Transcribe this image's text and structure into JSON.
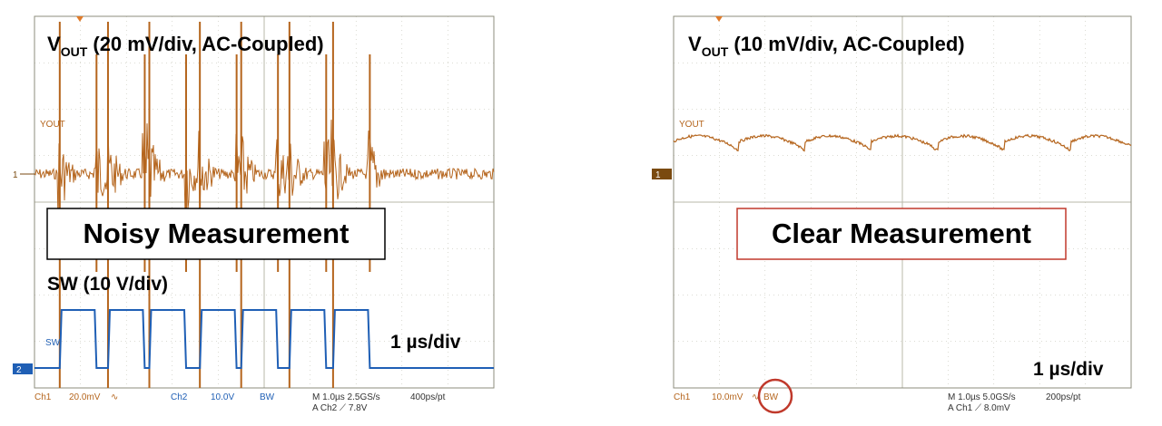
{
  "chart_data": [
    {
      "type": "line",
      "title": "Noisy Measurement",
      "x_scale": "1 µs/div",
      "grid": true,
      "series": [
        {
          "name": "YOUT",
          "scale_label": "VOUT (20 mV/div, AC-Coupled)",
          "channel": "1",
          "color": "#b5651d"
        },
        {
          "name": "SW",
          "scale_label": "SW (10 V/div)",
          "channel": "2",
          "color": "#1f5fb5",
          "edges_us": [
            0.55,
            1.6,
            2.5,
            3.6,
            4.5,
            5.55,
            6.5
          ],
          "high_duration_us": 0.1
        }
      ],
      "status": {
        "ch1": "Ch1",
        "ch1_scale": "20.0mV",
        "ch1_sym": "∿",
        "ch2": "Ch2",
        "ch2_scale": "10.0V",
        "bw": "BW",
        "timebase": "M 1.0µs 2.5GS/s",
        "record": "400ps/pt",
        "trigger_src": "A Ch2",
        "trigger_slope": "⟋",
        "trigger_level": "7.8V"
      }
    },
    {
      "type": "line",
      "title": "Clear Measurement",
      "x_scale": "1 µs/div",
      "grid": true,
      "series": [
        {
          "name": "YOUT",
          "scale_label": "VOUT (10 mV/div, AC-Coupled)",
          "channel": "1",
          "color": "#b5651d"
        }
      ],
      "status": {
        "ch1": "Ch1",
        "ch1_scale": "10.0mV",
        "ch1_sym": "∿",
        "bw": "BW",
        "timebase": "M 1.0µs 5.0GS/s",
        "record": "200ps/pt",
        "trigger_src": "A Ch1",
        "trigger_slope": "⟋",
        "trigger_level": "8.0mV"
      }
    }
  ],
  "colors": {
    "grid": "#b8b8a8",
    "frame": "#8c8c7c",
    "vout": "#b5651d",
    "sw": "#1f5fb5",
    "highlight": "#c0392b",
    "marker_bg": "#7a4a10"
  },
  "labels": {
    "left_vout_main": "V",
    "left_vout_sub": "OUT",
    "left_vout_rest": " (20 mV/div, AC-Coupled)",
    "right_vout_main": "V",
    "right_vout_sub": "OUT",
    "right_vout_rest": " (10 mV/div, AC-Coupled)",
    "left_sw": "SW (10 V/div)",
    "left_title": "Noisy Measurement",
    "right_title": "Clear Measurement",
    "timediv": "1 µs/div",
    "trace_yout": "YOUT",
    "trace_sw": "SW",
    "marker1": "1",
    "marker2": "2"
  }
}
